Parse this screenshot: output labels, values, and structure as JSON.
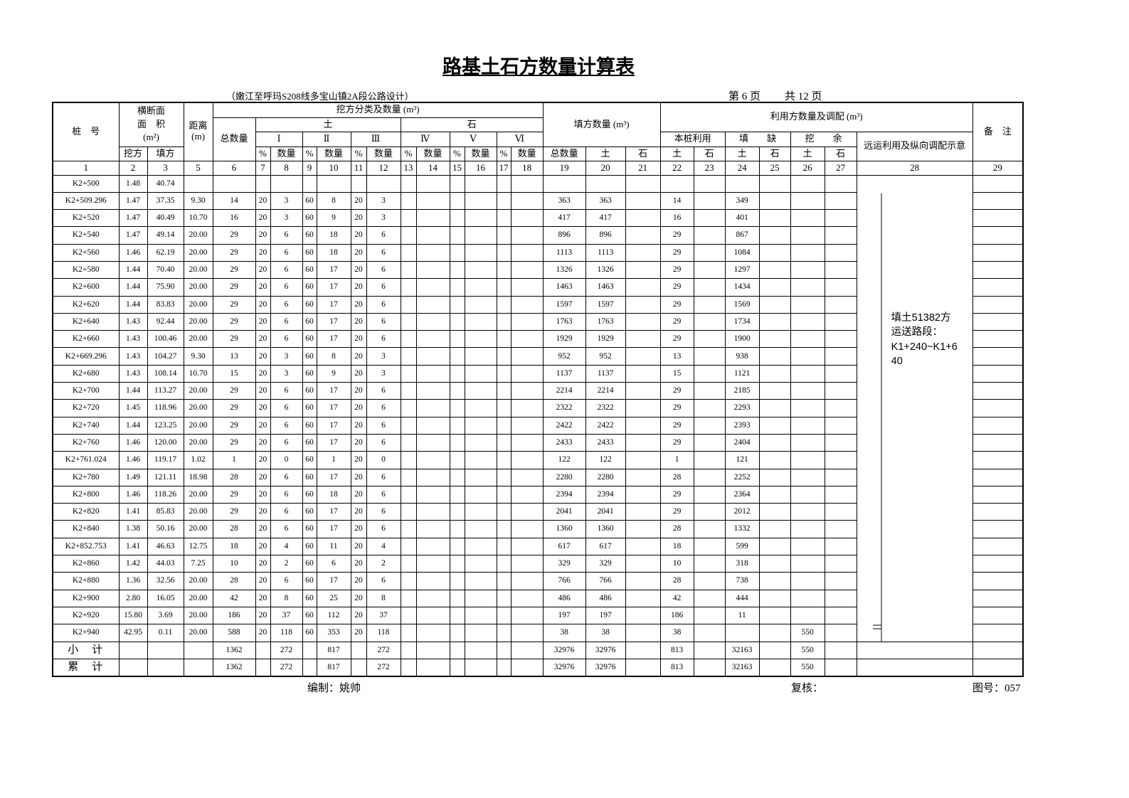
{
  "title": "路基土石方数量计算表",
  "project": "（嫩江至呼玛S208线多宝山镇2A段公路设计）",
  "page_current": "第 6 页",
  "page_total": "共 12 页",
  "table": {
    "header": {
      "station": "桩　号",
      "section": "横断面",
      "area": "面　积",
      "area_unit": "(m²)",
      "distance": "距离",
      "distance_unit": "(m)",
      "excavation": "挖方分类及数量 (m³)",
      "fill": "填方数量 (m³)",
      "utilization": "利用方数量及调配 (m³)",
      "remarks": "备　注",
      "total": "总数量",
      "soil": "土",
      "rock": "石",
      "classes": [
        "Ⅰ",
        "Ⅱ",
        "Ⅲ",
        "Ⅳ",
        "Ⅴ",
        "Ⅵ"
      ],
      "local_use": "本桩利用",
      "shortage": "填　　缺",
      "surplus": "挖　　余",
      "haul": "远运利用及纵向调配示意",
      "sub": [
        "挖方",
        "填方",
        "%",
        "数量",
        "%",
        "数量",
        "%",
        "数量",
        "%",
        "数量",
        "%",
        "数量",
        "%",
        "数量",
        "总数量",
        "土",
        "石",
        "土",
        "石",
        "土",
        "石",
        "土",
        "石"
      ]
    },
    "column_numbers": [
      1,
      2,
      3,
      5,
      6,
      7,
      8,
      9,
      10,
      11,
      12,
      13,
      14,
      15,
      16,
      17,
      18,
      19,
      20,
      21,
      22,
      23,
      24,
      25,
      26,
      27,
      28,
      29
    ],
    "rows": [
      [
        "K2+500",
        "1.48",
        "40.74",
        null,
        null,
        null,
        null,
        null,
        null,
        null,
        null,
        null,
        null,
        null,
        null,
        null,
        null,
        null,
        null,
        null,
        null,
        null,
        null,
        null,
        null,
        null
      ],
      [
        "K2+509.296",
        "1.47",
        "37.35",
        "9.30",
        14,
        20,
        3,
        60,
        8,
        20,
        3,
        null,
        null,
        null,
        null,
        null,
        null,
        363,
        363,
        null,
        14,
        null,
        349,
        null,
        null,
        null
      ],
      [
        "K2+520",
        "1.47",
        "40.49",
        "10.70",
        16,
        20,
        3,
        60,
        9,
        20,
        3,
        null,
        null,
        null,
        null,
        null,
        null,
        417,
        417,
        null,
        16,
        null,
        401,
        null,
        null,
        null
      ],
      [
        "K2+540",
        "1.47",
        "49.14",
        "20.00",
        29,
        20,
        6,
        60,
        18,
        20,
        6,
        null,
        null,
        null,
        null,
        null,
        null,
        896,
        896,
        null,
        29,
        null,
        867,
        null,
        null,
        null
      ],
      [
        "K2+560",
        "1.46",
        "62.19",
        "20.00",
        29,
        20,
        6,
        60,
        18,
        20,
        6,
        null,
        null,
        null,
        null,
        null,
        null,
        1113,
        1113,
        null,
        29,
        null,
        1084,
        null,
        null,
        null
      ],
      [
        "K2+580",
        "1.44",
        "70.40",
        "20.00",
        29,
        20,
        6,
        60,
        17,
        20,
        6,
        null,
        null,
        null,
        null,
        null,
        null,
        1326,
        1326,
        null,
        29,
        null,
        1297,
        null,
        null,
        null
      ],
      [
        "K2+600",
        "1.44",
        "75.90",
        "20.00",
        29,
        20,
        6,
        60,
        17,
        20,
        6,
        null,
        null,
        null,
        null,
        null,
        null,
        1463,
        1463,
        null,
        29,
        null,
        1434,
        null,
        null,
        null
      ],
      [
        "K2+620",
        "1.44",
        "83.83",
        "20.00",
        29,
        20,
        6,
        60,
        17,
        20,
        6,
        null,
        null,
        null,
        null,
        null,
        null,
        1597,
        1597,
        null,
        29,
        null,
        1569,
        null,
        null,
        null
      ],
      [
        "K2+640",
        "1.43",
        "92.44",
        "20.00",
        29,
        20,
        6,
        60,
        17,
        20,
        6,
        null,
        null,
        null,
        null,
        null,
        null,
        1763,
        1763,
        null,
        29,
        null,
        1734,
        null,
        null,
        null
      ],
      [
        "K2+660",
        "1.43",
        "100.46",
        "20.00",
        29,
        20,
        6,
        60,
        17,
        20,
        6,
        null,
        null,
        null,
        null,
        null,
        null,
        1929,
        1929,
        null,
        29,
        null,
        1900,
        null,
        null,
        null
      ],
      [
        "K2+669.296",
        "1.43",
        "104.27",
        "9.30",
        13,
        20,
        3,
        60,
        8,
        20,
        3,
        null,
        null,
        null,
        null,
        null,
        null,
        952,
        952,
        null,
        13,
        null,
        938,
        null,
        null,
        null
      ],
      [
        "K2+680",
        "1.43",
        "108.14",
        "10.70",
        15,
        20,
        3,
        60,
        9,
        20,
        3,
        null,
        null,
        null,
        null,
        null,
        null,
        1137,
        1137,
        null,
        15,
        null,
        1121,
        null,
        null,
        null
      ],
      [
        "K2+700",
        "1.44",
        "113.27",
        "20.00",
        29,
        20,
        6,
        60,
        17,
        20,
        6,
        null,
        null,
        null,
        null,
        null,
        null,
        2214,
        2214,
        null,
        29,
        null,
        2185,
        null,
        null,
        null
      ],
      [
        "K2+720",
        "1.45",
        "118.96",
        "20.00",
        29,
        20,
        6,
        60,
        17,
        20,
        6,
        null,
        null,
        null,
        null,
        null,
        null,
        2322,
        2322,
        null,
        29,
        null,
        2293,
        null,
        null,
        null
      ],
      [
        "K2+740",
        "1.44",
        "123.25",
        "20.00",
        29,
        20,
        6,
        60,
        17,
        20,
        6,
        null,
        null,
        null,
        null,
        null,
        null,
        2422,
        2422,
        null,
        29,
        null,
        2393,
        null,
        null,
        null
      ],
      [
        "K2+760",
        "1.46",
        "120.00",
        "20.00",
        29,
        20,
        6,
        60,
        17,
        20,
        6,
        null,
        null,
        null,
        null,
        null,
        null,
        2433,
        2433,
        null,
        29,
        null,
        2404,
        null,
        null,
        null
      ],
      [
        "K2+761.024",
        "1.46",
        "119.17",
        "1.02",
        1,
        20,
        0,
        60,
        1,
        20,
        0,
        null,
        null,
        null,
        null,
        null,
        null,
        122,
        122,
        null,
        1,
        null,
        121,
        null,
        null,
        null
      ],
      [
        "K2+780",
        "1.49",
        "121.11",
        "18.98",
        28,
        20,
        6,
        60,
        17,
        20,
        6,
        null,
        null,
        null,
        null,
        null,
        null,
        2280,
        2280,
        null,
        28,
        null,
        2252,
        null,
        null,
        null
      ],
      [
        "K2+800",
        "1.46",
        "118.26",
        "20.00",
        29,
        20,
        6,
        60,
        18,
        20,
        6,
        null,
        null,
        null,
        null,
        null,
        null,
        2394,
        2394,
        null,
        29,
        null,
        2364,
        null,
        null,
        null
      ],
      [
        "K2+820",
        "1.41",
        "85.83",
        "20.00",
        29,
        20,
        6,
        60,
        17,
        20,
        6,
        null,
        null,
        null,
        null,
        null,
        null,
        2041,
        2041,
        null,
        29,
        null,
        2012,
        null,
        null,
        null
      ],
      [
        "K2+840",
        "1.38",
        "50.16",
        "20.00",
        28,
        20,
        6,
        60,
        17,
        20,
        6,
        null,
        null,
        null,
        null,
        null,
        null,
        1360,
        1360,
        null,
        28,
        null,
        1332,
        null,
        null,
        null
      ],
      [
        "K2+852.753",
        "1.41",
        "46.63",
        "12.75",
        18,
        20,
        4,
        60,
        11,
        20,
        4,
        null,
        null,
        null,
        null,
        null,
        null,
        617,
        617,
        null,
        18,
        null,
        599,
        null,
        null,
        null
      ],
      [
        "K2+860",
        "1.42",
        "44.03",
        "7.25",
        10,
        20,
        2,
        60,
        6,
        20,
        2,
        null,
        null,
        null,
        null,
        null,
        null,
        329,
        329,
        null,
        10,
        null,
        318,
        null,
        null,
        null
      ],
      [
        "K2+880",
        "1.36",
        "32.56",
        "20.00",
        28,
        20,
        6,
        60,
        17,
        20,
        6,
        null,
        null,
        null,
        null,
        null,
        null,
        766,
        766,
        null,
        28,
        null,
        738,
        null,
        null,
        null
      ],
      [
        "K2+900",
        "2.80",
        "16.05",
        "20.00",
        42,
        20,
        8,
        60,
        25,
        20,
        8,
        null,
        null,
        null,
        null,
        null,
        null,
        486,
        486,
        null,
        42,
        null,
        444,
        null,
        null,
        null
      ],
      [
        "K2+920",
        "15.80",
        "3.69",
        "20.00",
        186,
        20,
        37,
        60,
        112,
        20,
        37,
        null,
        null,
        null,
        null,
        null,
        null,
        197,
        197,
        null,
        186,
        null,
        11,
        null,
        null,
        null
      ],
      [
        "K2+940",
        "42.95",
        "0.11",
        "20.00",
        588,
        20,
        118,
        60,
        353,
        20,
        118,
        null,
        null,
        null,
        null,
        null,
        null,
        38,
        38,
        null,
        38,
        null,
        null,
        null,
        550,
        null
      ]
    ],
    "totals": [
      [
        "小　计",
        null,
        null,
        null,
        1362,
        null,
        272,
        null,
        817,
        null,
        272,
        null,
        null,
        null,
        null,
        null,
        null,
        32976,
        32976,
        null,
        813,
        null,
        32163,
        null,
        550,
        null
      ],
      [
        "累　计",
        null,
        null,
        null,
        1362,
        null,
        272,
        null,
        817,
        null,
        272,
        null,
        null,
        null,
        null,
        null,
        null,
        32976,
        32976,
        null,
        813,
        null,
        32163,
        null,
        550,
        null
      ]
    ],
    "note": [
      "填土51382方",
      "运送路段：",
      "K1+240~K1+6",
      "40"
    ]
  },
  "footer": {
    "prepared": "编制：姚帅",
    "checked": "复核：",
    "drawing_no": "图号：057"
  }
}
